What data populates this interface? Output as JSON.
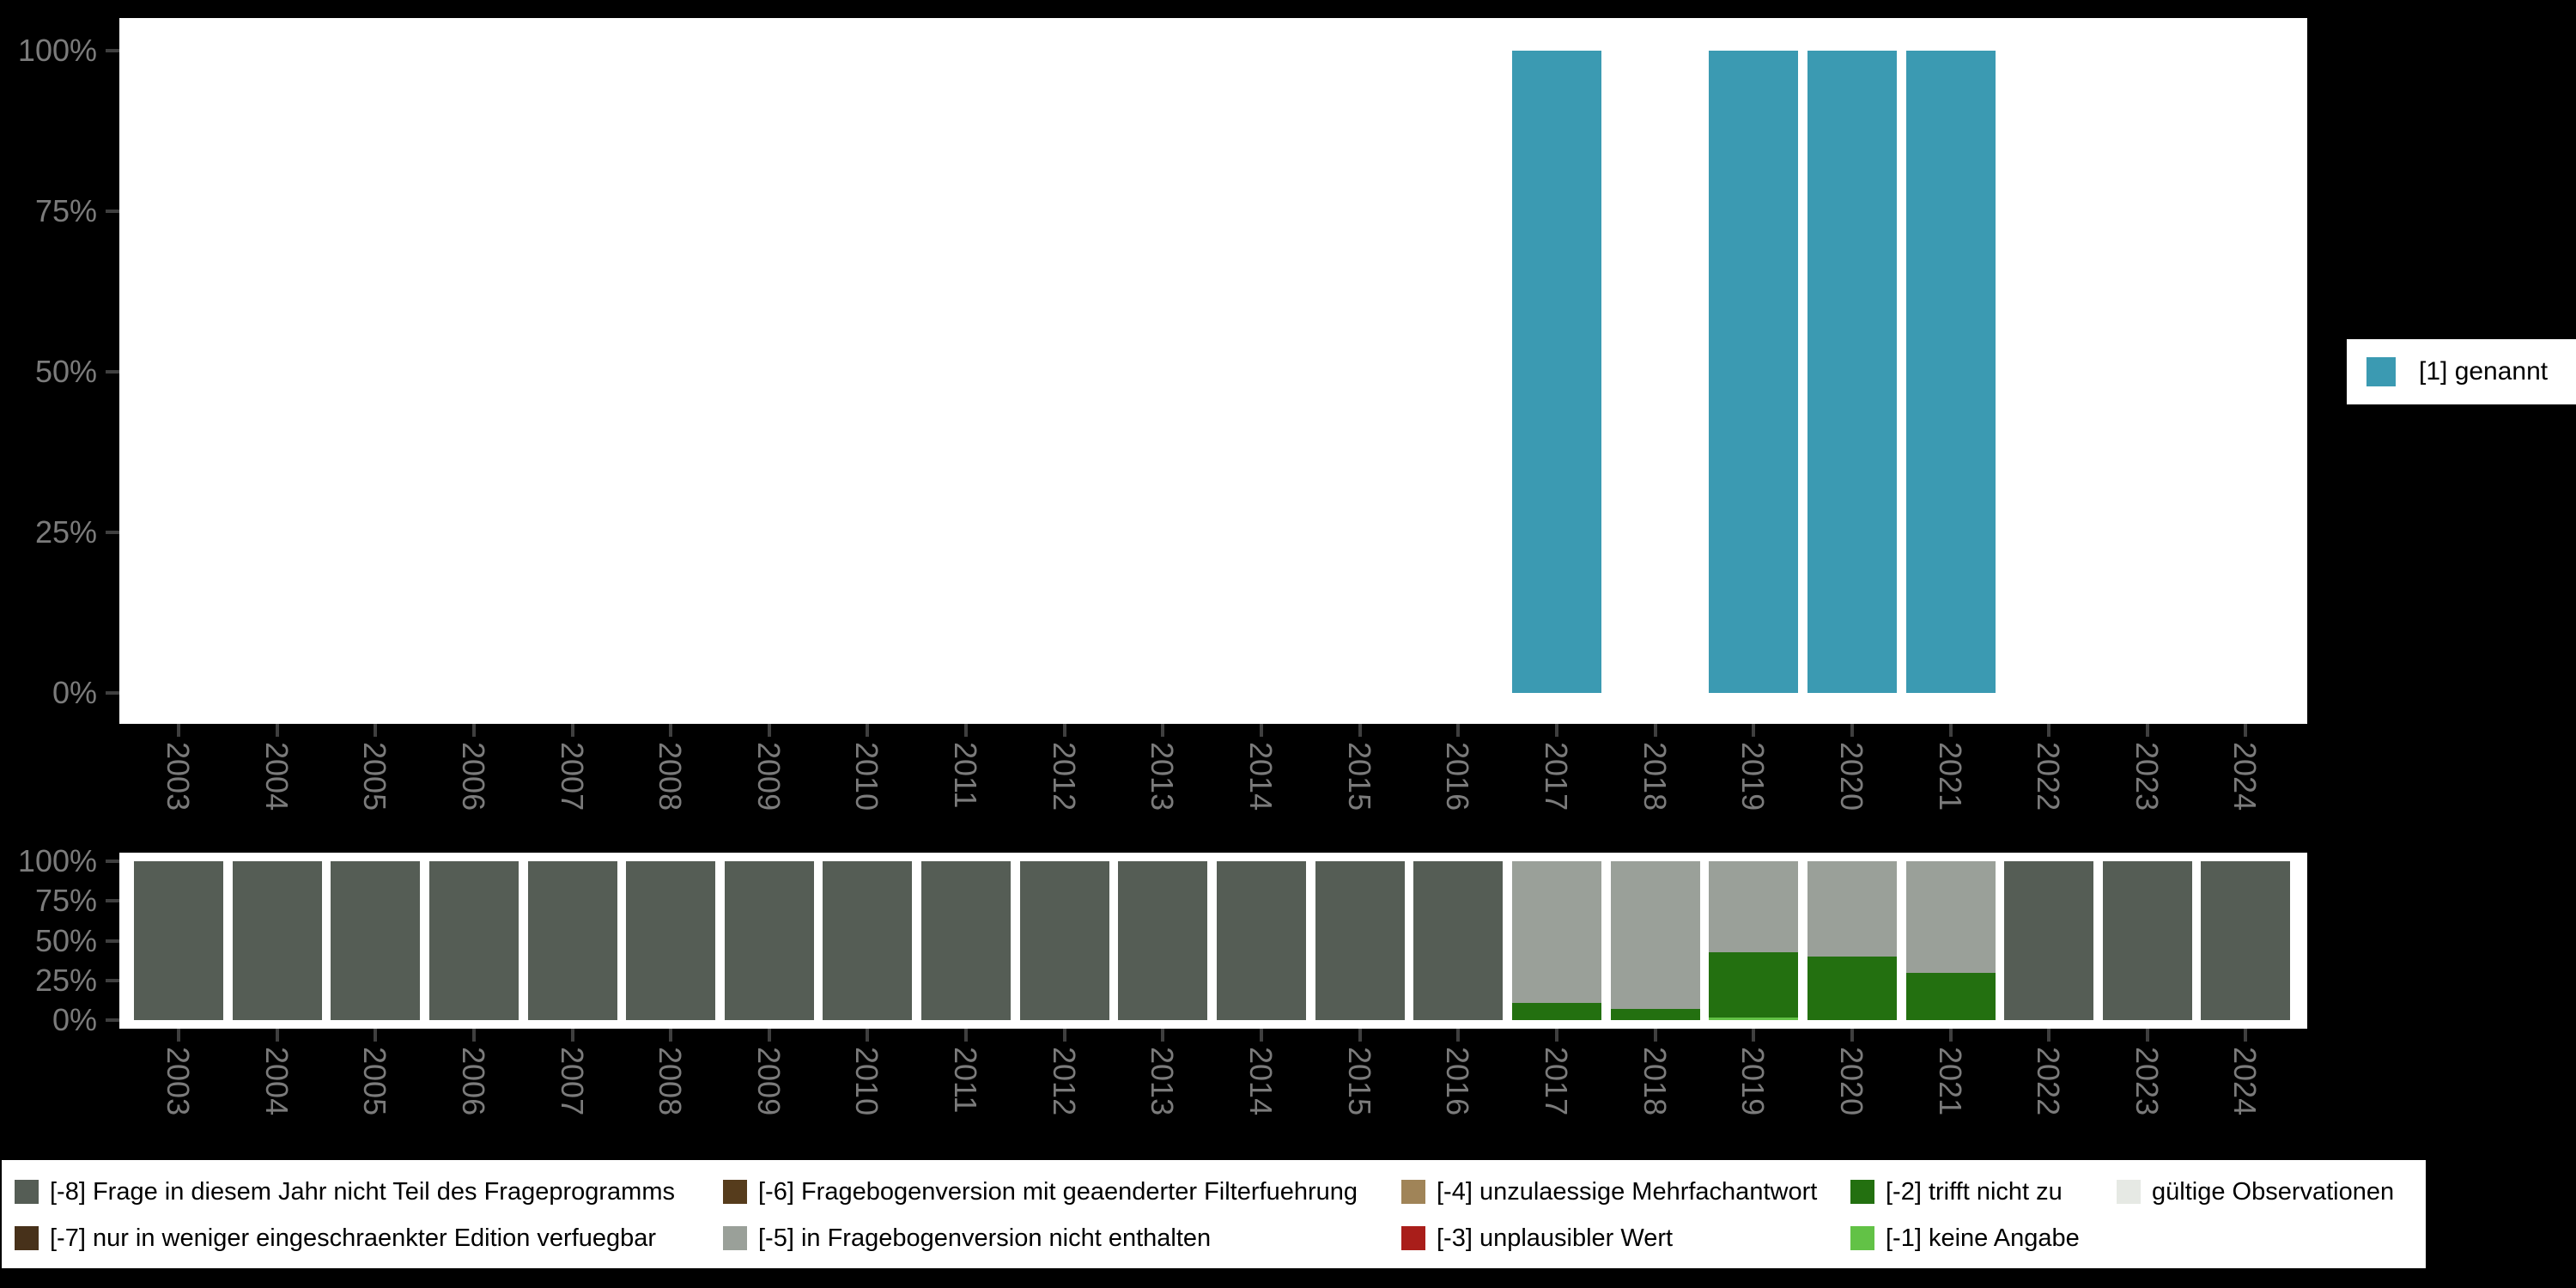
{
  "app": {
    "background": "#000000",
    "panel_bg": "#ffffff",
    "axis_label_color": "#7b7b7b",
    "tick_color": "#3f3f3f"
  },
  "chart_data": [
    {
      "type": "bar",
      "title": "",
      "xlabel": "",
      "ylabel": "",
      "x": [
        "2003",
        "2004",
        "2005",
        "2006",
        "2007",
        "2008",
        "2009",
        "2010",
        "2011",
        "2012",
        "2013",
        "2014",
        "2015",
        "2016",
        "2017",
        "2018",
        "2019",
        "2020",
        "2021",
        "2022",
        "2023",
        "2024"
      ],
      "ylim": [
        0,
        100
      ],
      "y_tick_labels": [
        "100%",
        "75%",
        "50%",
        "25%",
        "0%"
      ],
      "grid": false,
      "legend_position": "right",
      "series": [
        {
          "name": "[1] genannt",
          "color": "#3B9AB2",
          "values": [
            null,
            null,
            null,
            null,
            null,
            null,
            null,
            null,
            null,
            null,
            null,
            null,
            null,
            null,
            100,
            null,
            100,
            100,
            100,
            null,
            null,
            null
          ]
        }
      ]
    },
    {
      "type": "stacked_bar_percent",
      "title": "",
      "xlabel": "",
      "ylabel": "",
      "x": [
        "2003",
        "2004",
        "2005",
        "2006",
        "2007",
        "2008",
        "2009",
        "2010",
        "2011",
        "2012",
        "2013",
        "2014",
        "2015",
        "2016",
        "2017",
        "2018",
        "2019",
        "2020",
        "2021",
        "2022",
        "2023",
        "2024"
      ],
      "ylim": [
        0,
        100
      ],
      "y_tick_labels": [
        "100%",
        "75%",
        "50%",
        "25%",
        "0%"
      ],
      "grid": false,
      "legend_position": "bottom",
      "series": [
        {
          "name": "[-8] Frage in diesem Jahr nicht Teil des Frageprogramms",
          "color": "#555D55",
          "values": [
            100,
            100,
            100,
            100,
            100,
            100,
            100,
            100,
            100,
            100,
            100,
            100,
            100,
            100,
            0,
            0,
            0,
            0,
            0,
            100,
            100,
            100
          ]
        },
        {
          "name": "[-7] nur in weniger eingeschraenkter Edition verfuegbar",
          "color": "#47311A",
          "values": [
            0,
            0,
            0,
            0,
            0,
            0,
            0,
            0,
            0,
            0,
            0,
            0,
            0,
            0,
            0,
            0,
            0,
            0,
            0,
            0,
            0,
            0
          ]
        },
        {
          "name": "[-6] Fragebogenversion mit geaenderter Filterfuehrung",
          "color": "#563C1C",
          "values": [
            0,
            0,
            0,
            0,
            0,
            0,
            0,
            0,
            0,
            0,
            0,
            0,
            0,
            0,
            0,
            0,
            0,
            0,
            0,
            0,
            0,
            0
          ]
        },
        {
          "name": "[-5] in Fragebogenversion nicht enthalten",
          "color": "#9AA099",
          "values": [
            0,
            0,
            0,
            0,
            0,
            0,
            0,
            0,
            0,
            0,
            0,
            0,
            0,
            0,
            89,
            93,
            57.5,
            60,
            70,
            0,
            0,
            0
          ]
        },
        {
          "name": "[-4] unzulaessige Mehrfachantwort",
          "color": "#A08458",
          "values": [
            0,
            0,
            0,
            0,
            0,
            0,
            0,
            0,
            0,
            0,
            0,
            0,
            0,
            0,
            0,
            0,
            0,
            0,
            0,
            0,
            0,
            0
          ]
        },
        {
          "name": "[-3] unplausibler Wert",
          "color": "#A91E1A",
          "values": [
            0,
            0,
            0,
            0,
            0,
            0,
            0,
            0,
            0,
            0,
            0,
            0,
            0,
            0,
            0,
            0,
            0,
            0,
            0,
            0,
            0,
            0
          ]
        },
        {
          "name": "[-2] trifft nicht zu",
          "color": "#237010",
          "values": [
            0,
            0,
            0,
            0,
            0,
            0,
            0,
            0,
            0,
            0,
            0,
            0,
            0,
            0,
            11,
            7,
            41,
            40,
            30,
            0,
            0,
            0
          ]
        },
        {
          "name": "[-1] keine Angabe",
          "color": "#62C246",
          "values": [
            0,
            0,
            0,
            0,
            0,
            0,
            0,
            0,
            0,
            0,
            0,
            0,
            0,
            0,
            0,
            0,
            1.5,
            0,
            0,
            0,
            0,
            0
          ]
        },
        {
          "name": "gültige Observationen",
          "color": "#E6E9E4",
          "values": [
            0,
            0,
            0,
            0,
            0,
            0,
            0,
            0,
            0,
            0,
            0,
            0,
            0,
            0,
            0,
            0,
            0,
            0,
            0,
            0,
            0,
            0
          ]
        }
      ]
    }
  ]
}
